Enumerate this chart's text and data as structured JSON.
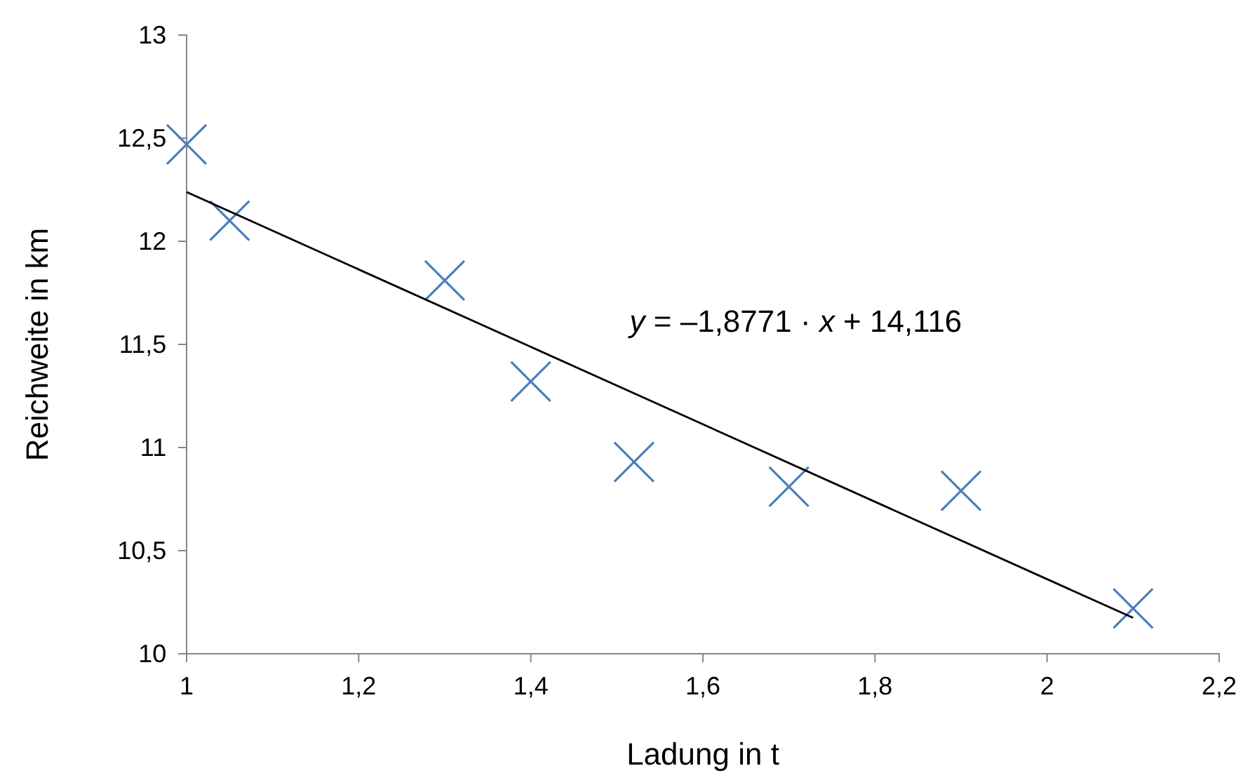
{
  "chart_data": {
    "type": "scatter",
    "xlabel": "Ladung in t",
    "ylabel": "Reichweite in km",
    "x": [
      1.0,
      1.05,
      1.3,
      1.4,
      1.52,
      1.7,
      1.9,
      2.1
    ],
    "series": [
      {
        "color": "#4a7ebb",
        "marker": "cross",
        "values": [
          12.47,
          12.1,
          11.81,
          11.32,
          10.93,
          10.81,
          10.79,
          10.22
        ]
      },
      {
        "type": "line",
        "color": "#000000",
        "x": [
          1.0,
          2.1
        ],
        "values": [
          12.239,
          10.174
        ]
      }
    ],
    "grid": false,
    "xlim": [
      1,
      2.2
    ],
    "xticks": [
      1,
      {
        "value": 1.2,
        "label": "1,2"
      },
      {
        "value": 1.4,
        "label": "1,4"
      },
      {
        "value": 1.6,
        "label": "1,6"
      },
      {
        "value": 1.8,
        "label": "1,8"
      },
      2,
      {
        "value": 2.2,
        "label": "2,2"
      }
    ],
    "ylim": [
      10,
      13
    ],
    "yticks": [
      10,
      {
        "value": 10.5,
        "label": "10,5"
      },
      11,
      {
        "value": 11.5,
        "label": "11,5"
      },
      12,
      {
        "value": 12.5,
        "label": "12,5"
      },
      13
    ],
    "annotations": [
      "y = –1,8771 · x + 14,116"
    ]
  }
}
